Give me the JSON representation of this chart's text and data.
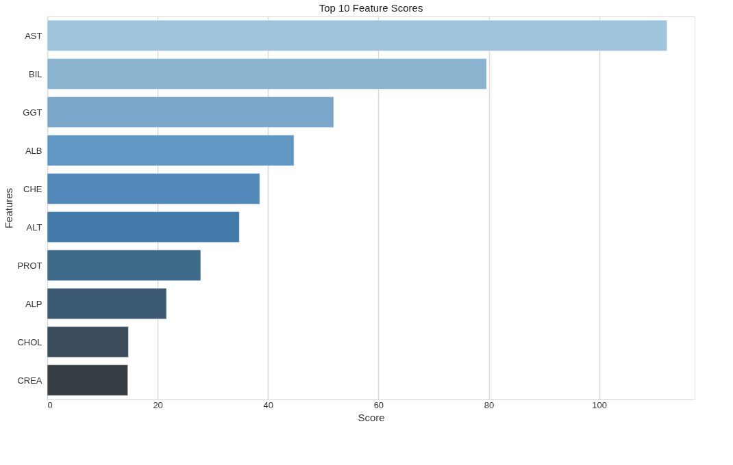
{
  "chart_data": {
    "type": "bar",
    "orientation": "horizontal",
    "title": "Top 10 Feature Scores",
    "xlabel": "Score",
    "ylabel": "Features",
    "categories": [
      "AST",
      "BIL",
      "GGT",
      "ALB",
      "CHE",
      "ALT",
      "PROT",
      "ALP",
      "CHOL",
      "CREA"
    ],
    "values": [
      112.3,
      79.6,
      51.9,
      44.7,
      38.5,
      34.8,
      27.8,
      21.6,
      14.7,
      14.6
    ],
    "colors": [
      "#9ec5dc",
      "#8ab3d0",
      "#79a6c9",
      "#6198c3",
      "#5189ba",
      "#4179a8",
      "#3e6a8a",
      "#3d5a73",
      "#3a4b5c",
      "#373f45"
    ],
    "xlim": [
      0,
      117.3
    ],
    "xticks": [
      0,
      20,
      40,
      60,
      80,
      100
    ],
    "grid": "x",
    "legend": false
  }
}
